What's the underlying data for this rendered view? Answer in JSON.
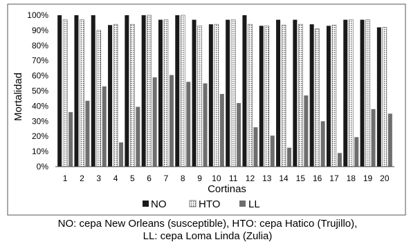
{
  "chart_data": {
    "type": "bar",
    "xlabel": "Cortinas",
    "ylabel": "Mortalidad",
    "ylim": [
      0,
      100
    ],
    "y_ticks": [
      "0%",
      "10%",
      "20%",
      "30%",
      "40%",
      "50%",
      "60%",
      "70%",
      "80%",
      "90%",
      "100%"
    ],
    "categories": [
      "1",
      "2",
      "3",
      "4",
      "5",
      "6",
      "7",
      "8",
      "9",
      "10",
      "11",
      "12",
      "13",
      "14",
      "15",
      "16",
      "17",
      "18",
      "19",
      "20"
    ],
    "series": [
      {
        "name": "NO",
        "color": "#1a1a1a",
        "pattern": "solid",
        "values": [
          100,
          100,
          100,
          93.5,
          100,
          100,
          97,
          100,
          97,
          94,
          97,
          100,
          93,
          97,
          97,
          94,
          93,
          97,
          97,
          92
        ]
      },
      {
        "name": "HTO",
        "color": "#d9d9d9",
        "pattern": "dotted",
        "values": [
          97,
          97,
          90,
          94,
          94,
          100,
          97,
          100,
          93,
          94,
          97,
          94,
          93,
          93.5,
          94,
          91,
          93.5,
          97,
          97,
          92
        ]
      },
      {
        "name": "LL",
        "color": "#6e6e6e",
        "pattern": "solid",
        "values": [
          36,
          43.5,
          53,
          16,
          39.5,
          59,
          60.5,
          56,
          55,
          48,
          42,
          26,
          20.5,
          12.5,
          47,
          30,
          9,
          19.5,
          38,
          35
        ]
      }
    ],
    "grid": false,
    "legend_position": "bottom"
  },
  "caption": {
    "line1": "NO: cepa New Orleans (susceptible),  HTO: cepa Hatico (Trujillo),",
    "line2": "LL: cepa Loma Linda (Zulia)"
  }
}
